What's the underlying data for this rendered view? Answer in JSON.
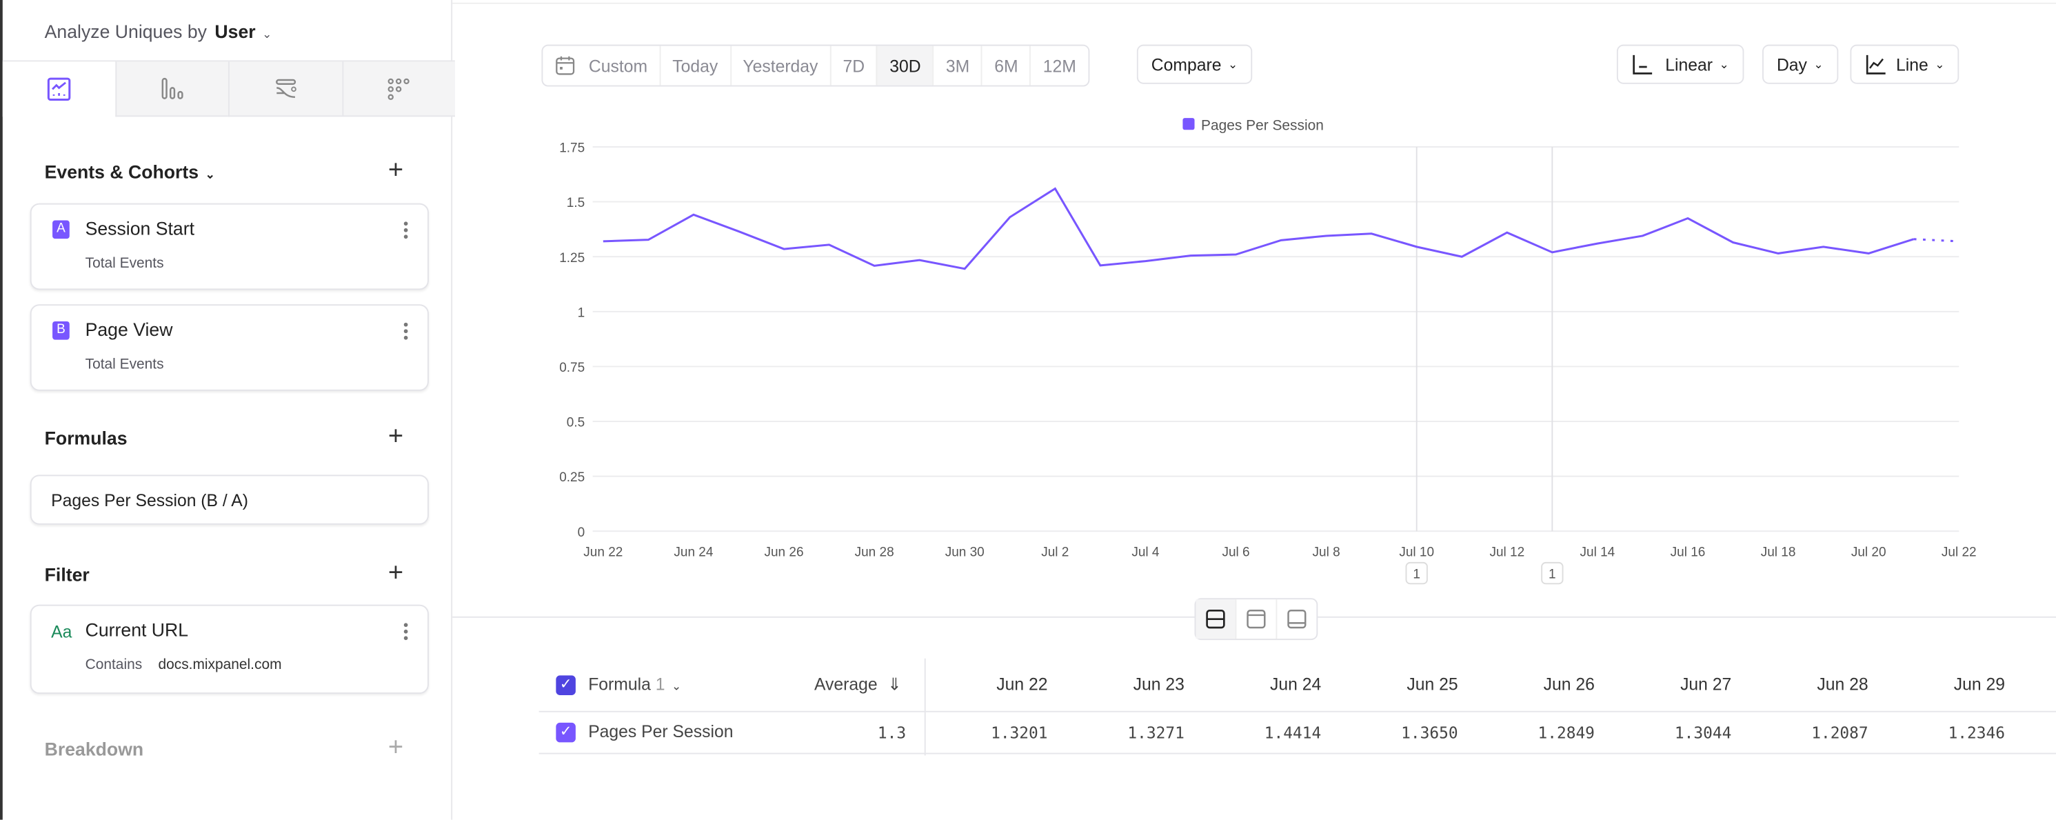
{
  "sidebar": {
    "analyze_label": "Analyze Uniques by",
    "analyze_value": "User",
    "view_tabs": [
      "insights-icon",
      "funnels-icon",
      "flows-icon",
      "retention-icon"
    ],
    "events_header": "Events & Cohorts",
    "events": [
      {
        "badge": "A",
        "name": "Session Start",
        "sub": "Total Events"
      },
      {
        "badge": "B",
        "name": "Page View",
        "sub": "Total Events"
      }
    ],
    "formulas_header": "Formulas",
    "formula": "Pages Per Session (B / A)",
    "filter_header": "Filter",
    "filter": {
      "type_icon": "Aa",
      "name": "Current URL",
      "operator": "Contains",
      "value": "docs.mixpanel.com"
    },
    "breakdown_header": "Breakdown"
  },
  "toolbar": {
    "ranges": [
      "Custom",
      "Today",
      "Yesterday",
      "7D",
      "30D",
      "3M",
      "6M",
      "12M"
    ],
    "selected": "30D",
    "compare": "Compare",
    "scale": "Linear",
    "interval": "Day",
    "chart_type": "Line"
  },
  "colors": {
    "accent": "#7856ff",
    "checkbox_header": "#4f44e0"
  },
  "chart_data": {
    "type": "line",
    "legend": "Pages Per Session",
    "series": [
      {
        "name": "Pages Per Session",
        "values": [
          1.3201,
          1.3271,
          1.4414,
          1.365,
          1.2849,
          1.3044,
          1.2087,
          1.2346,
          1.195,
          1.43,
          1.56,
          1.21,
          1.23,
          1.255,
          1.26,
          1.325,
          1.345,
          1.355,
          1.295,
          1.25,
          1.36,
          1.27,
          1.31,
          1.345,
          1.425,
          1.315,
          1.265,
          1.295,
          1.265,
          1.33,
          1.32
        ]
      }
    ],
    "x": [
      "Jun 22",
      "Jun 23",
      "Jun 24",
      "Jun 25",
      "Jun 26",
      "Jun 27",
      "Jun 28",
      "Jun 29",
      "Jun 30",
      "Jul 1",
      "Jul 2",
      "Jul 3",
      "Jul 4",
      "Jul 5",
      "Jul 6",
      "Jul 7",
      "Jul 8",
      "Jul 9",
      "Jul 10",
      "Jul 11",
      "Jul 12",
      "Jul 13",
      "Jul 14",
      "Jul 15",
      "Jul 16",
      "Jul 17",
      "Jul 18",
      "Jul 19",
      "Jul 20",
      "Jul 21",
      "Jul 22"
    ],
    "x_tick_labels": [
      "Jun 22",
      "Jun 24",
      "Jun 26",
      "Jun 28",
      "Jun 30",
      "Jul 2",
      "Jul 4",
      "Jul 6",
      "Jul 8",
      "Jul 10",
      "Jul 12",
      "Jul 14",
      "Jul 16",
      "Jul 18",
      "Jul 20",
      "Jul 22"
    ],
    "y_tick_labels": [
      "0",
      "0.25",
      "0.5",
      "0.75",
      "1",
      "1.25",
      "1.5",
      "1.75"
    ],
    "ylim": [
      0,
      1.75
    ],
    "grid": true,
    "legend_position": "top",
    "incomplete_last_point": true,
    "annotations": [
      {
        "date": "Jul 10",
        "label": "1"
      },
      {
        "date": "Jul 13",
        "label": "1"
      }
    ]
  },
  "table": {
    "group_label": "Formula",
    "group_count": "1",
    "avg_header": "Average",
    "columns": [
      "Jun 22",
      "Jun 23",
      "Jun 24",
      "Jun 25",
      "Jun 26",
      "Jun 27",
      "Jun 28",
      "Jun 29"
    ],
    "rows": [
      {
        "name": "Pages Per Session",
        "average": "1.3",
        "values": [
          "1.3201",
          "1.3271",
          "1.4414",
          "1.3650",
          "1.2849",
          "1.3044",
          "1.2087",
          "1.2346"
        ]
      }
    ]
  }
}
